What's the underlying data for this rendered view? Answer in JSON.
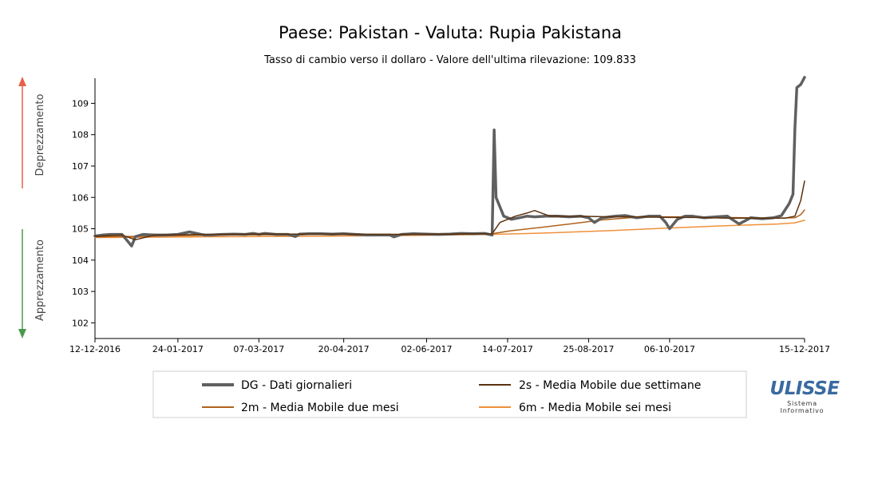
{
  "chart_data": {
    "type": "line",
    "title": "Paese: Pakistan - Valuta: Rupia Pakistana",
    "subtitle": "Tasso di cambio verso il dollaro - Valore dell'ultima rilevazione: 109.833",
    "ylabel_up": "Deprezzamento",
    "ylabel_down": "Apprezzamento",
    "ylim": [
      101.5,
      109.8
    ],
    "xlim": [
      "2016-12-12",
      "2017-12-15"
    ],
    "yticks": [
      102,
      103,
      104,
      105,
      106,
      107,
      108,
      109
    ],
    "xticks": [
      "12-12-2016",
      "24-01-2017",
      "07-03-2017",
      "20-04-2017",
      "02-06-2017",
      "14-07-2017",
      "25-08-2017",
      "06-10-2017",
      "15-12-2017"
    ],
    "grid": false,
    "legend_position": "bottom",
    "series": [
      {
        "key": "dg",
        "name": "DG - Dati giornalieri",
        "color": "#606060",
        "x": [
          "2016-12-12",
          "2016-12-16",
          "2016-12-20",
          "2016-12-26",
          "2016-12-29",
          "2016-12-31",
          "2017-01-02",
          "2017-01-06",
          "2017-01-12",
          "2017-01-18",
          "2017-01-24",
          "2017-01-30",
          "2017-02-05",
          "2017-02-07",
          "2017-02-10",
          "2017-02-16",
          "2017-02-22",
          "2017-02-28",
          "2017-03-04",
          "2017-03-07",
          "2017-03-10",
          "2017-03-16",
          "2017-03-22",
          "2017-03-26",
          "2017-03-28",
          "2017-04-02",
          "2017-04-08",
          "2017-04-14",
          "2017-04-20",
          "2017-04-26",
          "2017-05-02",
          "2017-05-08",
          "2017-05-14",
          "2017-05-16",
          "2017-05-20",
          "2017-05-26",
          "2017-06-02",
          "2017-06-08",
          "2017-06-14",
          "2017-06-20",
          "2017-06-26",
          "2017-07-02",
          "2017-07-06",
          "2017-07-07",
          "2017-07-08",
          "2017-07-10",
          "2017-07-12",
          "2017-07-16",
          "2017-07-20",
          "2017-07-24",
          "2017-07-28",
          "2017-08-03",
          "2017-08-09",
          "2017-08-15",
          "2017-08-21",
          "2017-08-25",
          "2017-08-28",
          "2017-09-01",
          "2017-09-05",
          "2017-09-08",
          "2017-09-13",
          "2017-09-19",
          "2017-09-25",
          "2017-10-01",
          "2017-10-04",
          "2017-10-06",
          "2017-10-10",
          "2017-10-14",
          "2017-10-18",
          "2017-10-24",
          "2017-10-30",
          "2017-11-05",
          "2017-11-11",
          "2017-11-17",
          "2017-11-23",
          "2017-11-29",
          "2017-12-03",
          "2017-12-07",
          "2017-12-09",
          "2017-12-10",
          "2017-12-11",
          "2017-12-13",
          "2017-12-15"
        ],
        "values": [
          104.77,
          104.8,
          104.82,
          104.82,
          104.6,
          104.45,
          104.75,
          104.82,
          104.8,
          104.8,
          104.82,
          104.9,
          104.82,
          104.8,
          104.8,
          104.82,
          104.83,
          104.82,
          104.85,
          104.82,
          104.85,
          104.82,
          104.82,
          104.75,
          104.83,
          104.84,
          104.84,
          104.83,
          104.84,
          104.82,
          104.8,
          104.8,
          104.8,
          104.74,
          104.82,
          104.84,
          104.83,
          104.82,
          104.83,
          104.85,
          104.84,
          104.85,
          104.8,
          108.15,
          106.0,
          105.7,
          105.4,
          105.3,
          105.35,
          105.4,
          105.38,
          105.4,
          105.4,
          105.38,
          105.4,
          105.35,
          105.2,
          105.35,
          105.38,
          105.4,
          105.42,
          105.35,
          105.4,
          105.4,
          105.2,
          105.0,
          105.3,
          105.4,
          105.4,
          105.35,
          105.38,
          105.4,
          105.15,
          105.35,
          105.32,
          105.35,
          105.42,
          105.8,
          106.1,
          108.2,
          109.5,
          109.6,
          109.83
        ]
      },
      {
        "key": "ma2s",
        "name": "2s - Media Mobile due settimane",
        "color": "#5a3210",
        "x": [
          "2016-12-12",
          "2016-12-26",
          "2017-01-02",
          "2017-01-12",
          "2017-02-10",
          "2017-03-10",
          "2017-04-10",
          "2017-05-10",
          "2017-06-10",
          "2017-07-06",
          "2017-07-10",
          "2017-07-18",
          "2017-07-24",
          "2017-07-28",
          "2017-08-05",
          "2017-08-20",
          "2017-09-05",
          "2017-09-20",
          "2017-10-06",
          "2017-10-20",
          "2017-11-05",
          "2017-11-20",
          "2017-12-05",
          "2017-12-10",
          "2017-12-13",
          "2017-12-15"
        ],
        "values": [
          104.76,
          104.8,
          104.65,
          104.8,
          104.82,
          104.83,
          104.83,
          104.82,
          104.83,
          104.84,
          105.2,
          105.4,
          105.5,
          105.58,
          105.4,
          105.4,
          105.38,
          105.38,
          105.36,
          105.36,
          105.34,
          105.34,
          105.34,
          105.4,
          105.9,
          106.52
        ]
      },
      {
        "key": "ma2m",
        "name": "2m - Media Mobile due mesi",
        "color": "#b0621c",
        "x": [
          "2016-12-12",
          "2017-01-15",
          "2017-02-15",
          "2017-03-15",
          "2017-04-15",
          "2017-05-15",
          "2017-06-15",
          "2017-07-06",
          "2017-07-15",
          "2017-08-01",
          "2017-08-15",
          "2017-09-01",
          "2017-09-15",
          "2017-10-01",
          "2017-10-15",
          "2017-11-01",
          "2017-11-15",
          "2017-12-01",
          "2017-12-10",
          "2017-12-13",
          "2017-12-15"
        ],
        "values": [
          104.74,
          104.77,
          104.8,
          104.81,
          104.82,
          104.82,
          104.82,
          104.84,
          104.93,
          105.05,
          105.15,
          105.28,
          105.35,
          105.38,
          105.38,
          105.36,
          105.35,
          105.34,
          105.35,
          105.45,
          105.6
        ]
      },
      {
        "key": "ma6m",
        "name": "6m - Media Mobile sei mesi",
        "color": "#f0903a",
        "x": [
          "2016-12-12",
          "2017-02-01",
          "2017-04-01",
          "2017-06-01",
          "2017-07-06",
          "2017-08-01",
          "2017-09-01",
          "2017-10-01",
          "2017-11-01",
          "2017-12-01",
          "2017-12-10",
          "2017-12-15"
        ],
        "values": [
          104.72,
          104.74,
          104.76,
          104.79,
          104.82,
          104.86,
          104.93,
          105.01,
          105.09,
          105.15,
          105.19,
          105.27
        ]
      }
    ]
  },
  "logo": {
    "name": "ULISSE",
    "line1": "Sistema",
    "line2": "Informativo",
    "color": "#3a6aa0"
  }
}
